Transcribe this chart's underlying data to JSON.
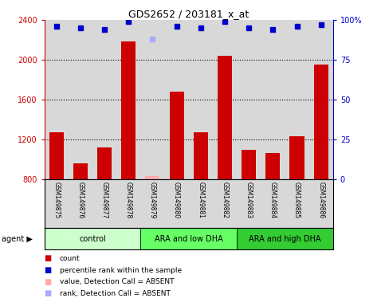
{
  "title": "GDS2652 / 203181_x_at",
  "samples": [
    "GSM149875",
    "GSM149876",
    "GSM149877",
    "GSM149878",
    "GSM149879",
    "GSM149880",
    "GSM149881",
    "GSM149882",
    "GSM149883",
    "GSM149884",
    "GSM149885",
    "GSM149886"
  ],
  "counts": [
    1270,
    960,
    1120,
    2180,
    null,
    1680,
    1270,
    2040,
    1090,
    1065,
    1230,
    1950
  ],
  "absent_counts": [
    null,
    null,
    null,
    null,
    830,
    null,
    null,
    null,
    null,
    null,
    null,
    null
  ],
  "percentile_ranks": [
    96,
    95,
    94,
    99,
    null,
    96,
    95,
    99,
    95,
    94,
    96,
    97
  ],
  "absent_ranks": [
    null,
    null,
    null,
    null,
    88,
    null,
    null,
    null,
    null,
    null,
    null,
    null
  ],
  "groups": [
    {
      "label": "control",
      "start": 0,
      "end": 4,
      "color": "#ccffcc"
    },
    {
      "label": "ARA and low DHA",
      "start": 4,
      "end": 8,
      "color": "#66ff66"
    },
    {
      "label": "ARA and high DHA",
      "start": 8,
      "end": 12,
      "color": "#33cc33"
    }
  ],
  "ylim_left": [
    800,
    2400
  ],
  "ylim_right": [
    0,
    100
  ],
  "bar_color": "#cc0000",
  "absent_bar_color": "#ffaaaa",
  "rank_color": "#0000cc",
  "absent_rank_color": "#aaaaff",
  "bg_color": "#d8d8d8",
  "left_tick_color": "#cc0000",
  "right_tick_color": "#0000cc",
  "legend_items": [
    {
      "label": "count",
      "color": "#cc0000"
    },
    {
      "label": "percentile rank within the sample",
      "color": "#0000cc"
    },
    {
      "label": "value, Detection Call = ABSENT",
      "color": "#ffaaaa"
    },
    {
      "label": "rank, Detection Call = ABSENT",
      "color": "#aaaaff"
    }
  ]
}
